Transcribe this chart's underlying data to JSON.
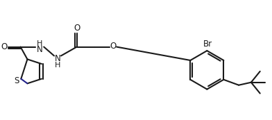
{
  "bg_color": "#ffffff",
  "line_color": "#1a1a1a",
  "line_width": 1.5,
  "figsize": [
    3.92,
    1.73
  ],
  "dpi": 100,
  "xlim": [
    0,
    3.92
  ],
  "ylim": [
    0,
    1.73
  ]
}
